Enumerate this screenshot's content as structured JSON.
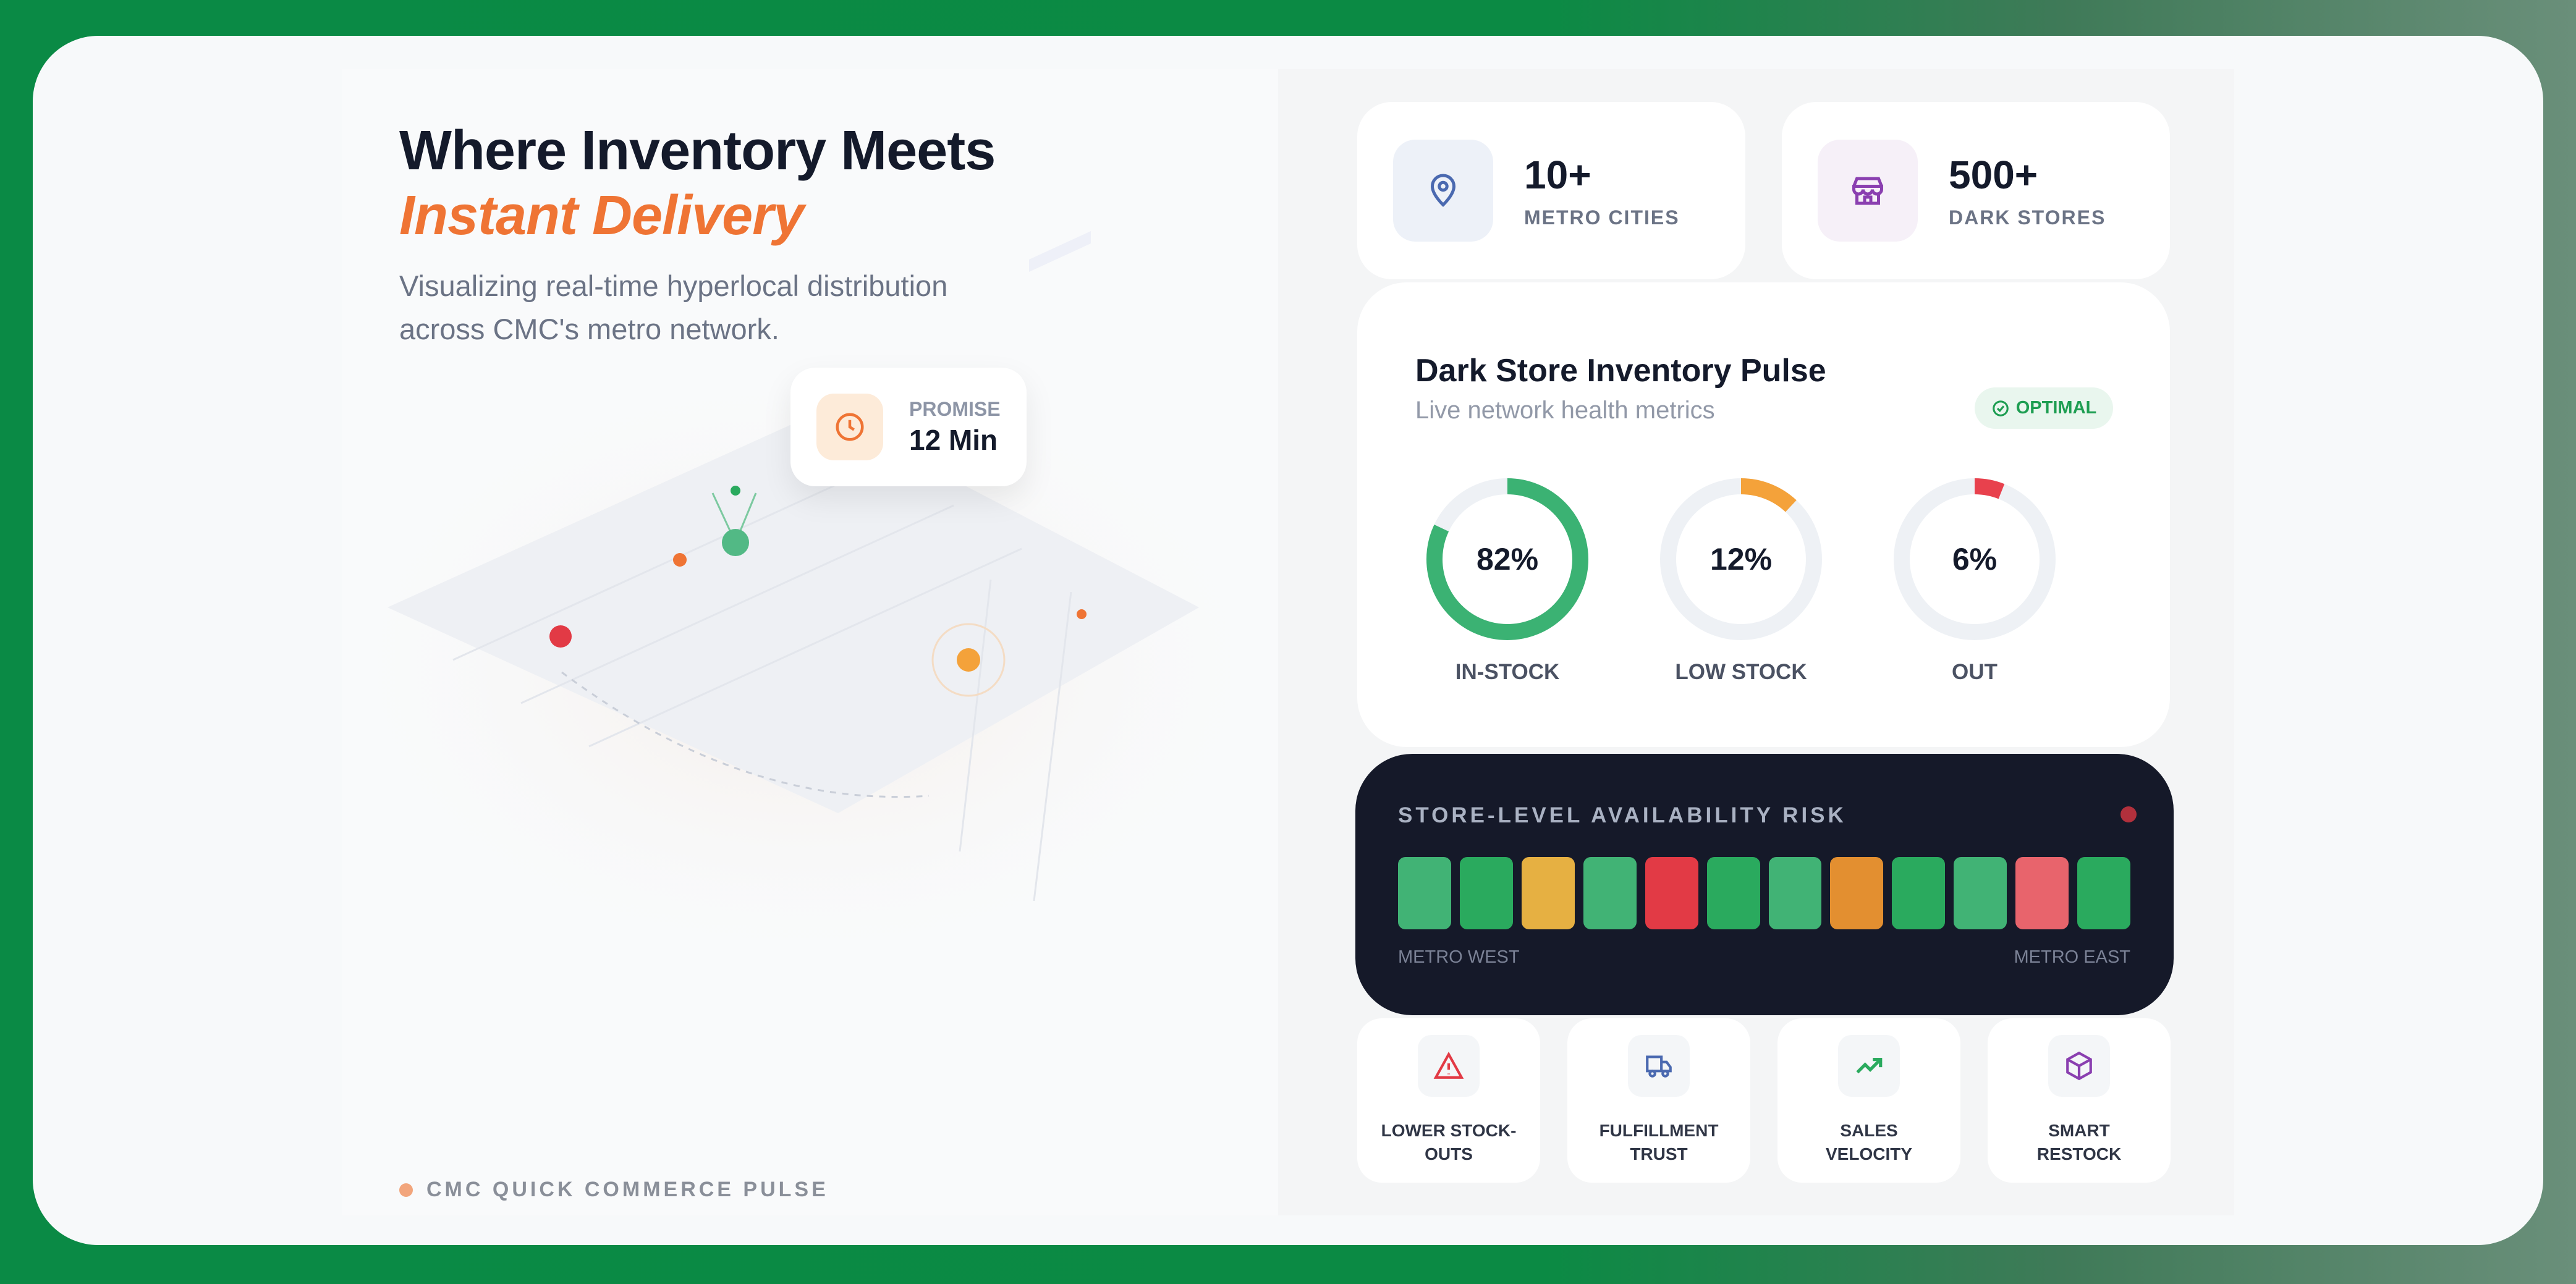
{
  "hero": {
    "title": "Where Inventory Meets",
    "highlight": "Instant Delivery",
    "subtitle": "Visualizing real-time hyperlocal distribution across CMC's metro network."
  },
  "promise": {
    "label": "PROMISE",
    "value": "12 Min",
    "icon": "clock-icon"
  },
  "footer": {
    "label": "CMC QUICK COMMERCE PULSE"
  },
  "stats": [
    {
      "value": "10+",
      "label": "METRO CITIES",
      "icon": "map-pin-icon"
    },
    {
      "value": "500+",
      "label": "DARK STORES",
      "icon": "store-icon"
    }
  ],
  "pulse": {
    "title": "Dark Store Inventory Pulse",
    "subtitle": "Live network health metrics",
    "badge": "OPTIMAL",
    "rings": [
      {
        "value": "82%",
        "percent": 82,
        "label": "IN-STOCK",
        "color": "#3bb273"
      },
      {
        "value": "12%",
        "percent": 12,
        "label": "LOW STOCK",
        "color": "#f4a23a"
      },
      {
        "value": "6%",
        "percent": 6,
        "label": "OUT",
        "color": "#e8414d"
      }
    ]
  },
  "risk": {
    "title": "STORE-LEVEL AVAILABILITY RISK",
    "left_label": "METRO WEST",
    "right_label": "METRO EAST",
    "stores": [
      "#41b375",
      "#2aaa5e",
      "#e6b042",
      "#41b375",
      "#e23a45",
      "#2aaa5e",
      "#41b375",
      "#e38f30",
      "#2aaa5e",
      "#41b375",
      "#e8646c",
      "#2aaa5e"
    ]
  },
  "features": [
    {
      "label": "LOWER STOCK-OUTS",
      "icon": "warning-icon"
    },
    {
      "label": "FULFILLMENT TRUST",
      "icon": "truck-icon"
    },
    {
      "label": "SALES VELOCITY",
      "icon": "trending-up-icon"
    },
    {
      "label": "SMART RESTOCK",
      "icon": "package-icon"
    }
  ]
}
